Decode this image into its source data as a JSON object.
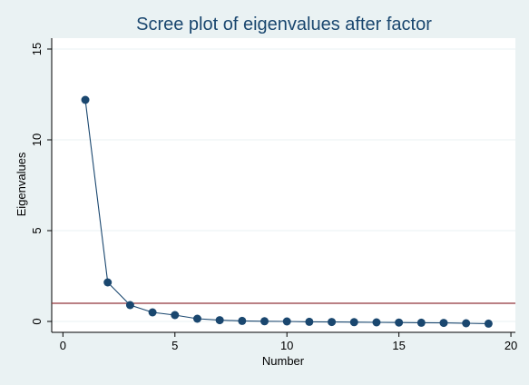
{
  "chart_data": {
    "type": "line",
    "title": "Scree plot of eigenvalues after factor",
    "xlabel": "Number",
    "ylabel": "Eigenvalues",
    "xlim": [
      -0.5,
      20.2
    ],
    "ylim": [
      -0.6,
      15.6
    ],
    "xticks": [
      0,
      5,
      10,
      15,
      20
    ],
    "yticks": [
      0,
      5,
      10,
      15
    ],
    "grid": true,
    "series": [
      {
        "x": [
          1,
          2,
          3,
          4,
          5,
          6,
          7,
          8,
          9,
          10,
          11,
          12,
          13,
          14,
          15,
          16,
          17,
          18,
          19
        ],
        "values": [
          12.2,
          2.15,
          0.9,
          0.5,
          0.35,
          0.15,
          0.07,
          0.03,
          0.01,
          0.0,
          -0.02,
          -0.03,
          -0.04,
          -0.05,
          -0.06,
          -0.07,
          -0.08,
          -0.1,
          -0.12
        ],
        "color": "#1a476f"
      }
    ],
    "reference_line": {
      "y": 1,
      "color": "#90353b"
    },
    "colors": {
      "background": "#eaf2f3",
      "plot_background": "#ffffff",
      "grid": "#eaf2f3",
      "title": "#1a476f"
    }
  }
}
